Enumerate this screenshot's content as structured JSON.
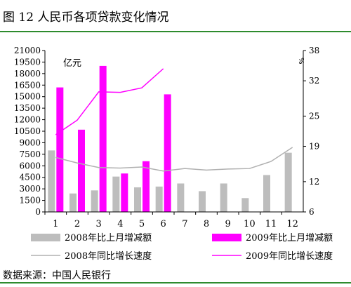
{
  "page": {
    "title": "图 12  人民币各项贷款变化情况",
    "source": "数据来源：中国人民银行"
  },
  "chart_data": {
    "type": "bar",
    "title": "图 12  人民币各项贷款变化情况",
    "categories": [
      "1",
      "2",
      "3",
      "4",
      "5",
      "6",
      "7",
      "8",
      "9",
      "10",
      "11",
      "12"
    ],
    "unit_label": "亿元",
    "right_unit_label": "%",
    "ylim": [
      0,
      21000
    ],
    "y_ticks": [
      0,
      1500,
      3000,
      4500,
      6000,
      7500,
      9000,
      10500,
      12000,
      13500,
      15000,
      16500,
      18000,
      19500,
      21000
    ],
    "y2lim": [
      6,
      38
    ],
    "y2_ticks": [
      6,
      12,
      19,
      25,
      32,
      38
    ],
    "bar_series": [
      {
        "name": "2008年比上月增减额",
        "color": "#bdbdbd",
        "values": [
          8000,
          2400,
          2800,
          4600,
          3200,
          3300,
          3700,
          2700,
          3700,
          1800,
          4800,
          7700
        ]
      },
      {
        "name": "2009年比上月增减额",
        "color": "#ff00ff",
        "values": [
          16200,
          10700,
          19000,
          5000,
          6600,
          15300,
          null,
          null,
          null,
          null,
          null,
          null
        ]
      }
    ],
    "line_series": [
      {
        "name": "2008年同比增长速度",
        "color": "#b0b0b0",
        "axis": "right",
        "values": [
          16.8,
          15.7,
          14.8,
          14.7,
          14.9,
          14.1,
          14.6,
          14.3,
          14.5,
          14.6,
          16.0,
          18.8
        ]
      },
      {
        "name": "2009年同比增长速度",
        "color": "#ff00ff",
        "axis": "right",
        "values": [
          21.3,
          24.2,
          29.8,
          29.7,
          30.6,
          34.4,
          null,
          null,
          null,
          null,
          null,
          null
        ]
      }
    ],
    "legend_position": "bottom",
    "grid": false
  }
}
